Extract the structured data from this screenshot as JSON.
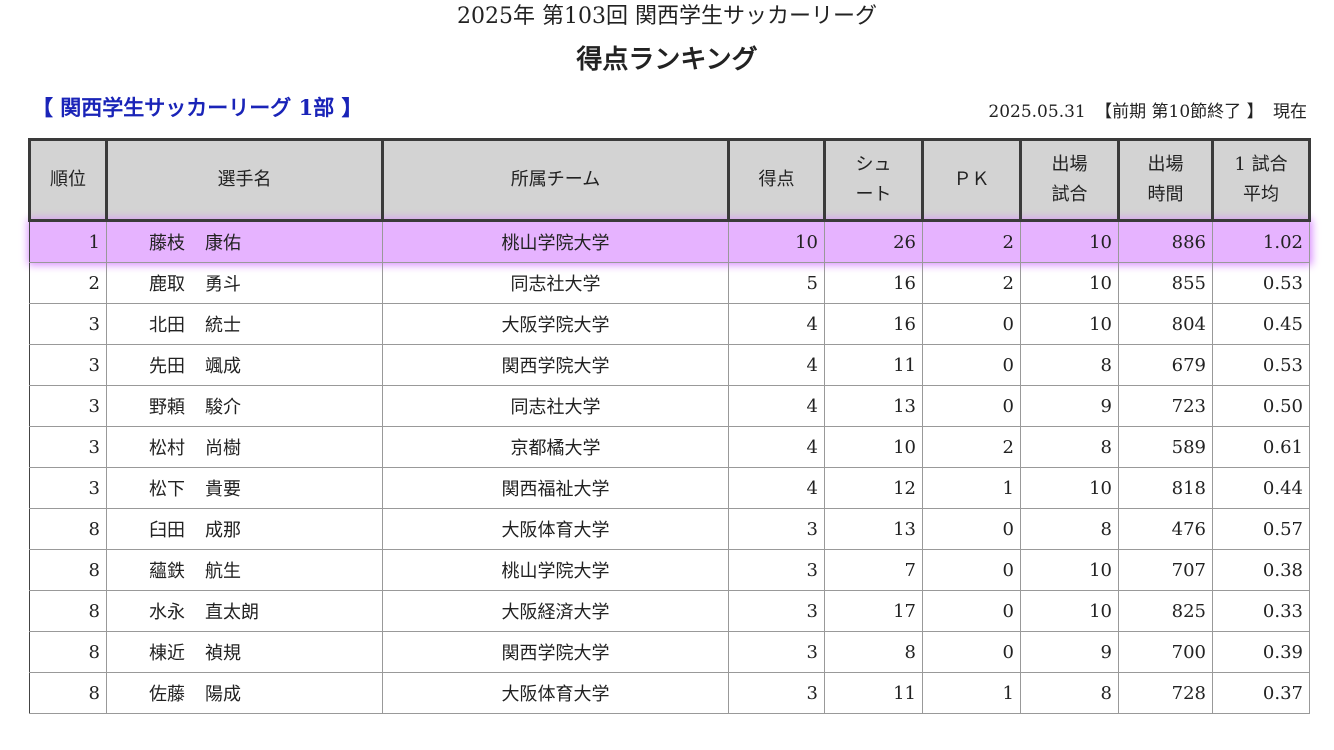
{
  "header": {
    "season": "2025年 第103回 関西学生サッカーリーグ",
    "title": "得点ランキング"
  },
  "division": "【 関西学生サッカーリーグ 1部 】",
  "status": {
    "date": "2025.05.31",
    "round": "【前期 第10節終了 】",
    "suffix": "現在"
  },
  "table": {
    "columns": {
      "rank": "順位",
      "player": "選手名",
      "team": "所属チーム",
      "goals": "得点",
      "shots_1": "シュ",
      "shots_2": "ート",
      "pk": "ＰＫ",
      "games_1": "出場",
      "games_2": "試合",
      "minutes_1": "出場",
      "minutes_2": "時間",
      "avg_1": "1 試合",
      "avg_2": "平均"
    },
    "highlight_color": "#e6b3ff",
    "rows": [
      {
        "rank": "1",
        "family": "藤枝",
        "given": "康佑",
        "team": "桃山学院大学",
        "goals": "10",
        "shots": "26",
        "pk": "2",
        "games": "10",
        "minutes": "886",
        "avg": "1.02",
        "highlighted": true
      },
      {
        "rank": "2",
        "family": "鹿取",
        "given": "勇斗",
        "team": "同志社大学",
        "goals": "5",
        "shots": "16",
        "pk": "2",
        "games": "10",
        "minutes": "855",
        "avg": "0.53"
      },
      {
        "rank": "3",
        "family": "北田",
        "given": "統士",
        "team": "大阪学院大学",
        "goals": "4",
        "shots": "16",
        "pk": "0",
        "games": "10",
        "minutes": "804",
        "avg": "0.45"
      },
      {
        "rank": "3",
        "family": "先田",
        "given": "颯成",
        "team": "関西学院大学",
        "goals": "4",
        "shots": "11",
        "pk": "0",
        "games": "8",
        "minutes": "679",
        "avg": "0.53"
      },
      {
        "rank": "3",
        "family": "野頼",
        "given": "駿介",
        "team": "同志社大学",
        "goals": "4",
        "shots": "13",
        "pk": "0",
        "games": "9",
        "minutes": "723",
        "avg": "0.50"
      },
      {
        "rank": "3",
        "family": "松村",
        "given": "尚樹",
        "team": "京都橘大学",
        "goals": "4",
        "shots": "10",
        "pk": "2",
        "games": "8",
        "minutes": "589",
        "avg": "0.61"
      },
      {
        "rank": "3",
        "family": "松下",
        "given": "貴要",
        "team": "関西福祉大学",
        "goals": "4",
        "shots": "12",
        "pk": "1",
        "games": "10",
        "minutes": "818",
        "avg": "0.44"
      },
      {
        "rank": "8",
        "family": "臼田",
        "given": "成那",
        "team": "大阪体育大学",
        "goals": "3",
        "shots": "13",
        "pk": "0",
        "games": "8",
        "minutes": "476",
        "avg": "0.57"
      },
      {
        "rank": "8",
        "family": "蘊鉄",
        "given": "航生",
        "team": "桃山学院大学",
        "goals": "3",
        "shots": "7",
        "pk": "0",
        "games": "10",
        "minutes": "707",
        "avg": "0.38"
      },
      {
        "rank": "8",
        "family": "水永",
        "given": "直太朗",
        "team": "大阪経済大学",
        "goals": "3",
        "shots": "17",
        "pk": "0",
        "games": "10",
        "minutes": "825",
        "avg": "0.33"
      },
      {
        "rank": "8",
        "family": "棟近",
        "given": "禎規",
        "team": "関西学院大学",
        "goals": "3",
        "shots": "8",
        "pk": "0",
        "games": "9",
        "minutes": "700",
        "avg": "0.39"
      },
      {
        "rank": "8",
        "family": "佐藤",
        "given": "陽成",
        "team": "大阪体育大学",
        "goals": "3",
        "shots": "11",
        "pk": "1",
        "games": "8",
        "minutes": "728",
        "avg": "0.37"
      }
    ]
  }
}
